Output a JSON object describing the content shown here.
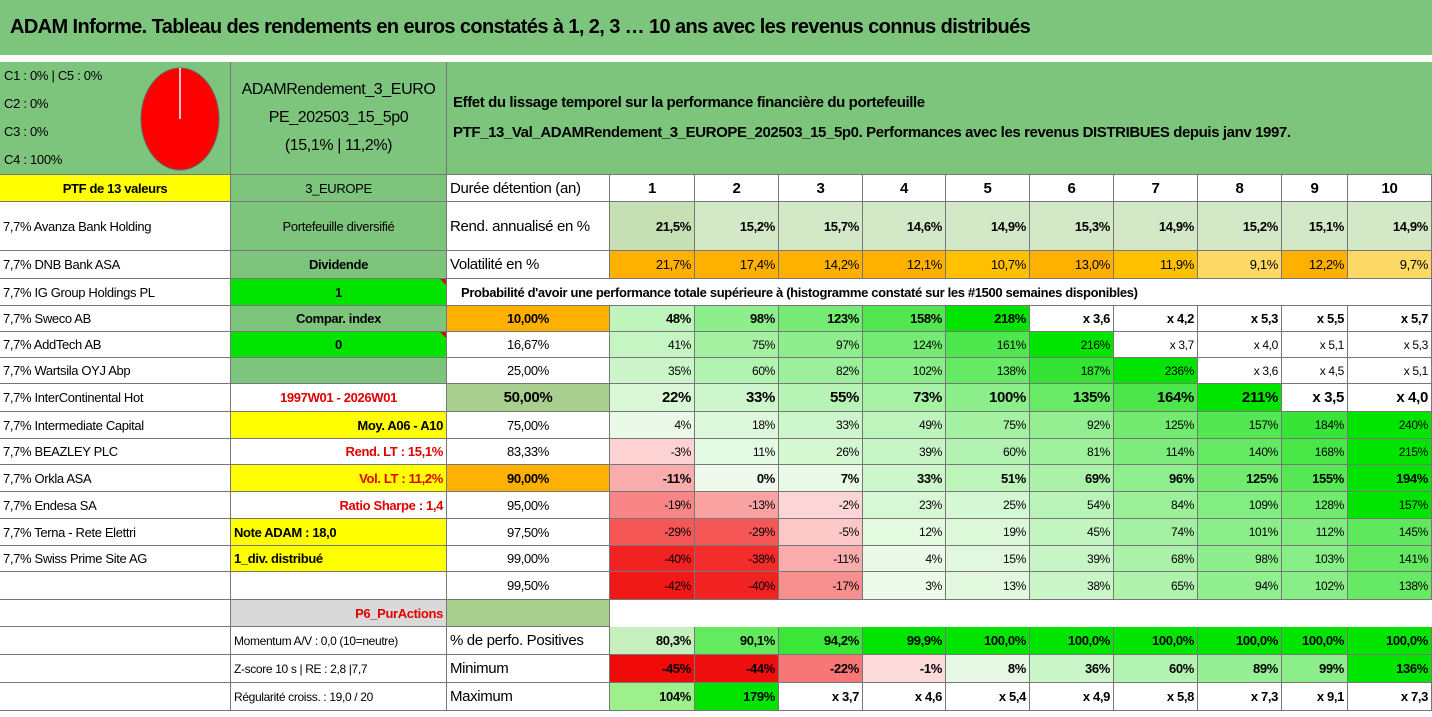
{
  "title": "ADAM Informe. Tableau des rendements en euros constatés à 1, 2, 3 … 10 ans avec les revenus connus distribués",
  "legend": [
    "C1 : 0% | C5 : 0%",
    "C2 : 0%",
    "C3 : 0%",
    "C4 : 100%"
  ],
  "pie": {
    "slices": [
      {
        "label": "C4",
        "value": 100,
        "color": "#ff0000"
      }
    ]
  },
  "fund": {
    "line1": "ADAMRendement_3_EURO",
    "line2": "PE_202503_15_5p0",
    "line3": "(15,1% | 11,2%)"
  },
  "effet": {
    "line1": "Effet du lissage temporel sur la performance financière du portefeuille",
    "line2": "PTF_13_Val_ADAMRendement_3_EUROPE_202503_15_5p0. Performances avec les revenus DISTRIBUES depuis janv 1997."
  },
  "ptf_label": "PTF de 13 valeurs",
  "region": "3_EUROPE",
  "holdings": [
    "7,7% Avanza Bank Holding",
    "7,7% DNB Bank ASA",
    "7,7% IG Group Holdings PL",
    "7,7% Sweco AB",
    "7,7% AddTech AB",
    "7,7% Wartsila OYJ Abp",
    "7,7% InterContinental Hot",
    "7,7% Intermediate Capital",
    "7,7% BEAZLEY PLC",
    "7,7% Orkla ASA",
    "7,7% Endesa SA",
    "7,7% Terna - Rete Elettri",
    "7,7% Swiss Prime Site AG"
  ],
  "info": {
    "diversifie": "Portefeuille diversifié",
    "dividende": "Dividende",
    "dividende_val": "1",
    "compar": "Compar. index",
    "compar_val": "0",
    "periode": "1997W01 - 2026W01",
    "moy": "Moy. A06 - A10",
    "rend_lt": "Rend. LT : 15,1%",
    "vol_lt": "Vol. LT : 11,2%",
    "sharpe": "Ratio Sharpe : 1,4",
    "note": "Note ADAM : 18,0",
    "div_distribue": "1_div. distribué",
    "p6": "P6_PurActions",
    "momentum": "Momentum A/V : 0,0 (10=neutre)",
    "zscore": "Z-score 10 s | RE : 2,8 |7,7",
    "regularite": "Régularité croiss. : 19,0 / 20"
  },
  "table": {
    "duree_label": "Durée détention (an)",
    "years": [
      "1",
      "2",
      "3",
      "4",
      "5",
      "6",
      "7",
      "8",
      "9",
      "10"
    ],
    "rend_label": "Rend. annualisé en %",
    "rend": [
      "21,5%",
      "15,2%",
      "15,7%",
      "14,6%",
      "14,9%",
      "15,3%",
      "14,9%",
      "15,2%",
      "15,1%",
      "14,9%"
    ],
    "vol_label": "Volatilité en %",
    "vol": [
      "21,7%",
      "17,4%",
      "14,2%",
      "12,1%",
      "10,7%",
      "13,0%",
      "11,9%",
      "9,1%",
      "12,2%",
      "9,7%"
    ],
    "proba_label": "Probabilité d'avoir une performance totale supérieure à (histogramme constaté sur les #1500 semaines disponibles)",
    "proba_rows": [
      {
        "p": "10,00%",
        "v": [
          "48%",
          "98%",
          "123%",
          "158%",
          "218%",
          "x 3,6",
          "x 4,2",
          "x 5,3",
          "x 5,5",
          "x 5,7"
        ]
      },
      {
        "p": "16,67%",
        "v": [
          "41%",
          "75%",
          "97%",
          "124%",
          "161%",
          "216%",
          "x 3,7",
          "x 4,0",
          "x 5,1",
          "x 5,3"
        ]
      },
      {
        "p": "25,00%",
        "v": [
          "35%",
          "60%",
          "82%",
          "102%",
          "138%",
          "187%",
          "236%",
          "x 3,6",
          "x 4,5",
          "x 5,1"
        ]
      },
      {
        "p": "50,00%",
        "v": [
          "22%",
          "33%",
          "55%",
          "73%",
          "100%",
          "135%",
          "164%",
          "211%",
          "x 3,5",
          "x 4,0"
        ]
      },
      {
        "p": "75,00%",
        "v": [
          "4%",
          "18%",
          "33%",
          "49%",
          "75%",
          "92%",
          "125%",
          "157%",
          "184%",
          "240%"
        ]
      },
      {
        "p": "83,33%",
        "v": [
          "-3%",
          "11%",
          "26%",
          "39%",
          "60%",
          "81%",
          "114%",
          "140%",
          "168%",
          "215%"
        ]
      },
      {
        "p": "90,00%",
        "v": [
          "-11%",
          "0%",
          "7%",
          "33%",
          "51%",
          "69%",
          "96%",
          "125%",
          "155%",
          "194%"
        ]
      },
      {
        "p": "95,00%",
        "v": [
          "-19%",
          "-13%",
          "-2%",
          "23%",
          "25%",
          "54%",
          "84%",
          "109%",
          "128%",
          "157%"
        ]
      },
      {
        "p": "97,50%",
        "v": [
          "-29%",
          "-29%",
          "-5%",
          "12%",
          "19%",
          "45%",
          "74%",
          "101%",
          "112%",
          "145%"
        ]
      },
      {
        "p": "99,00%",
        "v": [
          "-40%",
          "-38%",
          "-11%",
          "4%",
          "15%",
          "39%",
          "68%",
          "98%",
          "103%",
          "141%"
        ]
      },
      {
        "p": "99,50%",
        "v": [
          "-42%",
          "-40%",
          "-17%",
          "3%",
          "13%",
          "38%",
          "65%",
          "94%",
          "102%",
          "138%"
        ]
      }
    ],
    "pos_label": "% de perfo. Positives",
    "pos": [
      "80,3%",
      "90,1%",
      "94,2%",
      "99,9%",
      "100,0%",
      "100,0%",
      "100,0%",
      "100,0%",
      "100,0%",
      "100,0%"
    ],
    "min_label": "Minimum",
    "min": [
      "-45%",
      "-44%",
      "-22%",
      "-1%",
      "8%",
      "36%",
      "60%",
      "89%",
      "99%",
      "136%"
    ],
    "max_label": "Maximum",
    "max": [
      "104%",
      "179%",
      "x 3,7",
      "x 4,6",
      "x 5,4",
      "x 4,9",
      "x 5,8",
      "x 7,3",
      "x 9,1",
      "x 7,3"
    ]
  },
  "colors": {
    "title_green": "#7dc47d",
    "bright_green": "#00e400",
    "yellow": "#ffff00",
    "orange": "#ffb000",
    "sage": "#a9cf8f",
    "pie_red": "#ff0000"
  }
}
